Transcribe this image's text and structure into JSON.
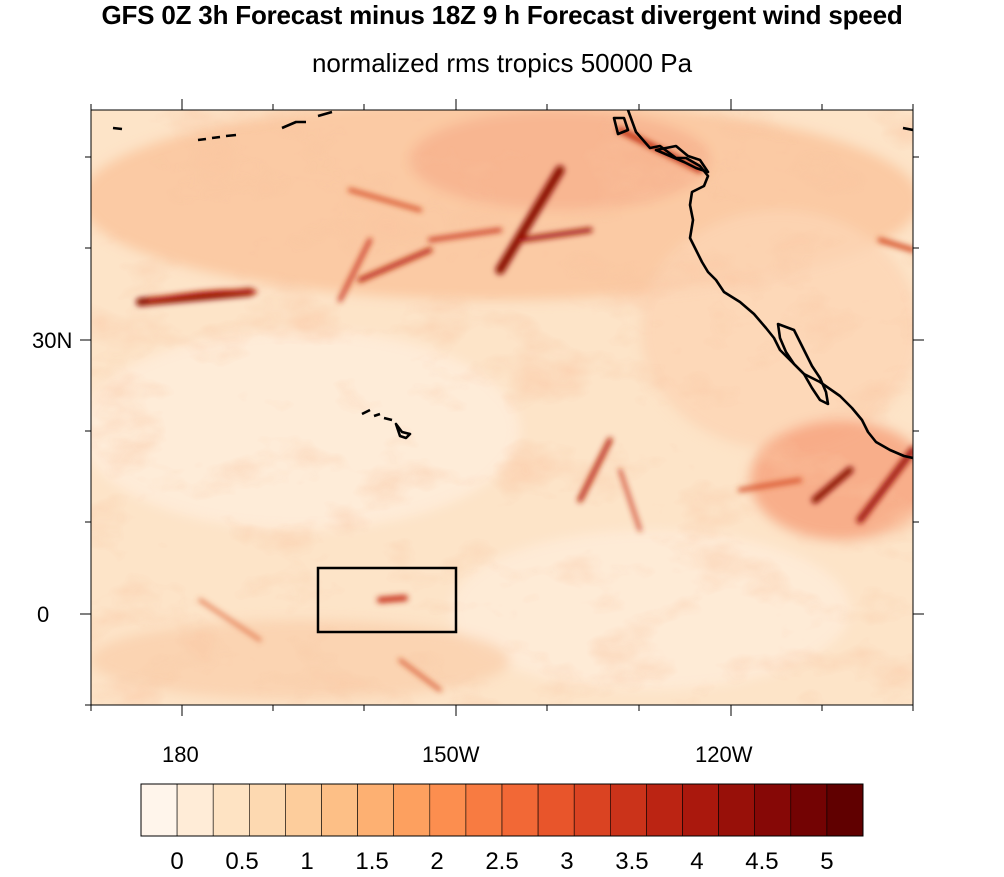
{
  "title": "GFS 0Z 3h Forecast minus 18Z 9 h Forecast divergent wind speed",
  "subtitle": "normalized rms tropics 50000 Pa",
  "lat_labels": [
    "30N",
    "0"
  ],
  "lon_labels": [
    "180",
    "150W",
    "120W"
  ],
  "colorbar": {
    "labels": [
      "0",
      "0.5",
      "1",
      "1.5",
      "2",
      "2.5",
      "3",
      "3.5",
      "4",
      "4.5",
      "5"
    ],
    "colors": [
      "#fff5eb",
      "#ffecd7",
      "#fee3c3",
      "#fdd9b1",
      "#fdcd9c",
      "#fdbf86",
      "#fdb072",
      "#fda05f",
      "#fc8e4f",
      "#f87b41",
      "#f26836",
      "#e8552b",
      "#da4322",
      "#cb331a",
      "#bb2413",
      "#aa180d",
      "#981009",
      "#860806",
      "#730303",
      "#600000"
    ]
  },
  "map_extent": {
    "lon_min": "170E",
    "lon_max": "100W",
    "lat_min": "10S",
    "lat_max": "55N"
  },
  "highlight_box": {
    "lon_range": [
      "165W",
      "150W"
    ],
    "lat_range": [
      "2S",
      "5N"
    ]
  }
}
